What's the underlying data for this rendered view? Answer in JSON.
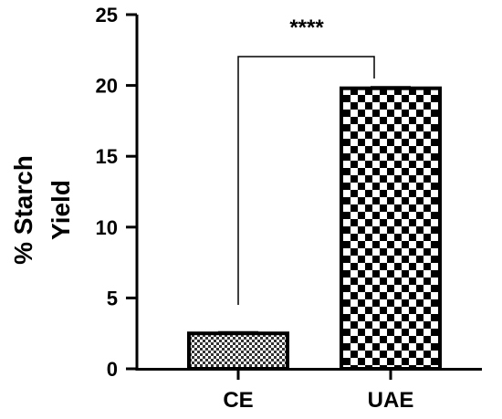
{
  "chart_data": {
    "type": "bar",
    "categories": [
      "CE",
      "UAE"
    ],
    "values": [
      2.5,
      19.8
    ],
    "ylabel_lines": [
      "% Starch",
      "Yield"
    ],
    "ylim": [
      0,
      25
    ],
    "yticks": [
      0,
      5,
      10,
      15,
      20,
      25
    ],
    "patterns": [
      "fine-checker",
      "coarse-checker"
    ],
    "bar_color": "#000000",
    "significance": {
      "pair": [
        "CE",
        "UAE"
      ],
      "label": "****"
    },
    "grid": false
  }
}
